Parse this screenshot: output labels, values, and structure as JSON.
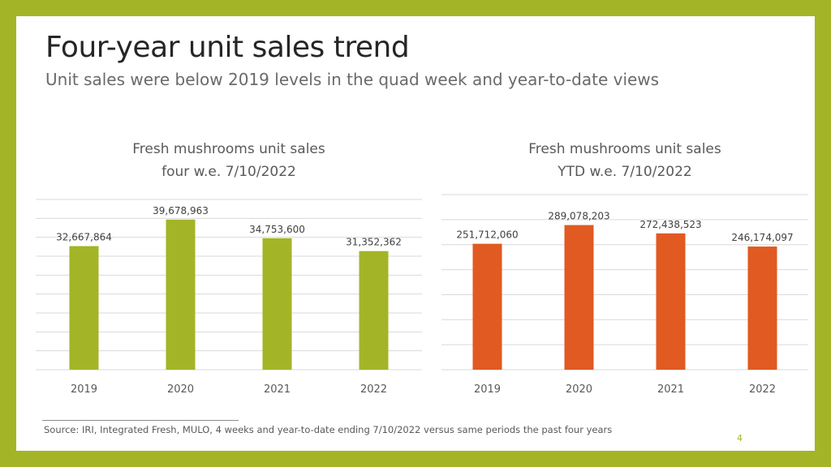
{
  "header": {
    "title": "Four-year unit sales trend",
    "subtitle": "Unit sales were below 2019 levels in the quad week and year-to-date views"
  },
  "colors": {
    "frame": "#a3b526",
    "chart1_bar": "#a3b526",
    "chart2_bar": "#e05a22"
  },
  "chart_data": [
    {
      "type": "bar",
      "title_lines": [
        "Fresh mushrooms unit sales",
        "four w.e. 7/10/2022"
      ],
      "categories": [
        "2019",
        "2020",
        "2021",
        "2022"
      ],
      "values": [
        32667864,
        39678963,
        34753600,
        31352362
      ],
      "value_labels": [
        "32,667,864",
        "39,678,963",
        "34,753,600",
        "31,352,362"
      ],
      "ylim": [
        0,
        45000000
      ],
      "grid": true,
      "color": "#a3b526"
    },
    {
      "type": "bar",
      "title_lines": [
        "Fresh mushrooms unit sales",
        "YTD w.e. 7/10/2022"
      ],
      "categories": [
        "2019",
        "2020",
        "2021",
        "2022"
      ],
      "values": [
        251712060,
        289078203,
        272438523,
        246174097
      ],
      "value_labels": [
        "251,712,060",
        "289,078,203",
        "272,438,523",
        "246,174,097"
      ],
      "ylim": [
        0,
        350000000
      ],
      "grid": true,
      "color": "#e05a22"
    }
  ],
  "footer": {
    "source": "Source: IRI, Integrated Fresh, MULO, 4 weeks and year-to-date ending 7/10/2022 versus same periods the past four years",
    "page_number": "4"
  }
}
